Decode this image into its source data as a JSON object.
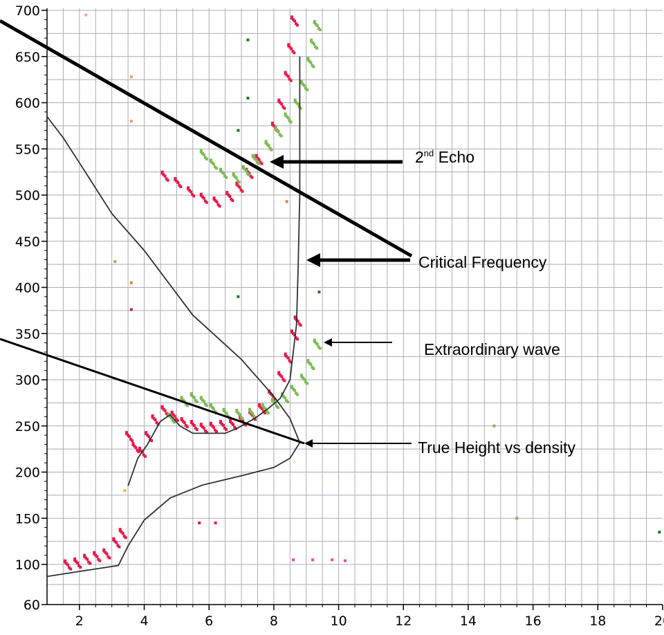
{
  "chart_data": {
    "type": "scatter",
    "title": "",
    "xlabel": "",
    "ylabel": "",
    "xlim": [
      1,
      20
    ],
    "ylim": [
      60,
      700
    ],
    "grid": true,
    "x_ticks": [
      "2",
      "4",
      "6",
      "8",
      "10",
      "12",
      "14",
      "16",
      "18",
      "20"
    ],
    "y_ticks": [
      "60",
      "100",
      "150",
      "200",
      "250",
      "300",
      "350",
      "400",
      "450",
      "500",
      "550",
      "600",
      "650",
      "700"
    ],
    "colors": {
      "ordinary": "#e8194a",
      "ordinary_light": "#ee4aa0",
      "extraordinary": "#7dbb55",
      "extraordinary_dark": "#1a7a1a",
      "stray": "#f07f20",
      "profile_line": "#303030",
      "annotation": "#000000"
    },
    "series": [
      {
        "role": "ordinary_trace",
        "color": "#e8194a",
        "points": [
          [
            1.6,
            101
          ],
          [
            1.9,
            103
          ],
          [
            2.2,
            107
          ],
          [
            2.5,
            110
          ],
          [
            2.8,
            113
          ],
          [
            3.1,
            125
          ],
          [
            3.3,
            135
          ],
          [
            3.5,
            240
          ],
          [
            3.7,
            228
          ],
          [
            3.9,
            223
          ],
          [
            4.1,
            240
          ],
          [
            4.3,
            258
          ],
          [
            4.6,
            268
          ],
          [
            4.9,
            262
          ],
          [
            5.2,
            255
          ],
          [
            5.5,
            252
          ],
          [
            5.8,
            249
          ],
          [
            6.1,
            250
          ],
          [
            6.4,
            252
          ],
          [
            6.7,
            253
          ],
          [
            7.0,
            257
          ],
          [
            7.3,
            263
          ],
          [
            7.6,
            270
          ],
          [
            7.9,
            285
          ],
          [
            8.2,
            305
          ],
          [
            8.4,
            325
          ],
          [
            8.6,
            350
          ],
          [
            8.7,
            365
          ],
          [
            4.6,
            522
          ],
          [
            5.0,
            515
          ],
          [
            5.4,
            505
          ],
          [
            5.8,
            498
          ],
          [
            6.2,
            494
          ],
          [
            6.6,
            500
          ],
          [
            6.9,
            510
          ],
          [
            7.2,
            525
          ],
          [
            7.5,
            540
          ],
          [
            7.8,
            555
          ],
          [
            8.0,
            575
          ],
          [
            8.2,
            600
          ],
          [
            8.4,
            630
          ],
          [
            8.5,
            660
          ],
          [
            8.6,
            690
          ]
        ]
      },
      {
        "role": "extraordinary_trace",
        "color": "#7dbb55",
        "points": [
          [
            4.8,
            260
          ],
          [
            5.2,
            278
          ],
          [
            5.5,
            282
          ],
          [
            5.8,
            278
          ],
          [
            6.1,
            270
          ],
          [
            6.5,
            265
          ],
          [
            6.9,
            264
          ],
          [
            7.3,
            265
          ],
          [
            7.7,
            270
          ],
          [
            8.0,
            276
          ],
          [
            8.3,
            282
          ],
          [
            8.6,
            290
          ],
          [
            8.9,
            302
          ],
          [
            9.1,
            318
          ],
          [
            9.3,
            340
          ],
          [
            5.8,
            545
          ],
          [
            6.1,
            535
          ],
          [
            6.4,
            525
          ],
          [
            6.8,
            520
          ],
          [
            7.1,
            528
          ],
          [
            7.4,
            540
          ],
          [
            7.8,
            555
          ],
          [
            8.1,
            570
          ],
          [
            8.4,
            585
          ],
          [
            8.7,
            600
          ],
          [
            8.9,
            620
          ],
          [
            9.1,
            645
          ],
          [
            9.2,
            665
          ],
          [
            9.3,
            685
          ]
        ]
      },
      {
        "role": "profile_line",
        "color": "#303030",
        "points": [
          [
            1.0,
            88
          ],
          [
            2.0,
            93
          ],
          [
            3.2,
            99
          ],
          [
            3.5,
            120
          ],
          [
            4.0,
            148
          ],
          [
            4.8,
            172
          ],
          [
            5.8,
            186
          ],
          [
            7.0,
            196
          ],
          [
            8.0,
            205
          ],
          [
            8.5,
            215
          ],
          [
            8.8,
            232
          ],
          [
            8.5,
            258
          ],
          [
            8.0,
            282
          ],
          [
            7.0,
            322
          ],
          [
            5.5,
            370
          ],
          [
            4.0,
            440
          ],
          [
            3.0,
            480
          ],
          [
            2.0,
            535
          ],
          [
            1.5,
            562
          ],
          [
            1.0,
            585
          ]
        ]
      },
      {
        "role": "virtual_height_line",
        "color": "#303030",
        "points": [
          [
            3.5,
            185
          ],
          [
            3.8,
            215
          ],
          [
            4.1,
            230
          ],
          [
            4.5,
            255
          ],
          [
            4.8,
            262
          ],
          [
            5.1,
            250
          ],
          [
            5.5,
            242
          ],
          [
            6.0,
            242
          ],
          [
            6.5,
            242
          ],
          [
            6.9,
            248
          ],
          [
            7.4,
            258
          ],
          [
            7.8,
            268
          ],
          [
            8.2,
            280
          ],
          [
            8.5,
            300
          ],
          [
            8.6,
            330
          ],
          [
            8.7,
            360
          ],
          [
            8.75,
            420
          ],
          [
            8.8,
            500
          ],
          [
            8.8,
            580
          ],
          [
            8.8,
            650
          ]
        ]
      }
    ],
    "annotations": [
      {
        "label_start": "2",
        "label_sup": "nd",
        "label_end": " Echo",
        "target": [
          7.8,
          535
        ]
      },
      {
        "text": "Critical Frequency",
        "target": [
          8.8,
          405
        ]
      },
      {
        "text": "Extraordinary wave",
        "target": [
          9.4,
          342
        ]
      },
      {
        "text": "True Height vs density",
        "target": [
          8.8,
          225
        ]
      }
    ]
  }
}
